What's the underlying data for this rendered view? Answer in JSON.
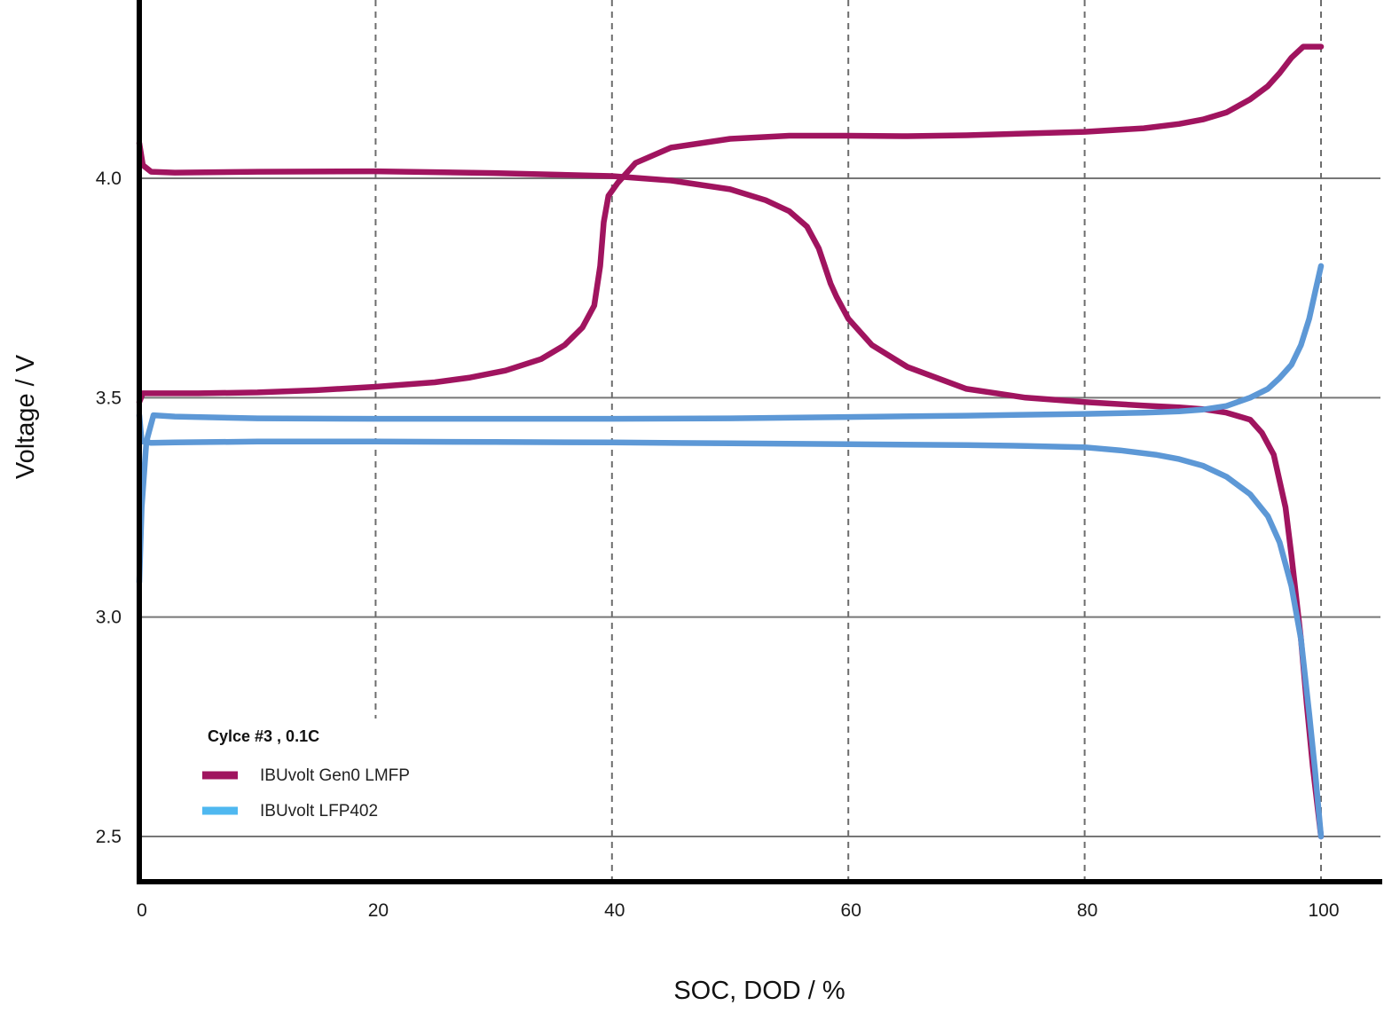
{
  "chart_data": {
    "type": "line",
    "xlabel": "SOC, DOD / %",
    "ylabel": "Voltage / V",
    "xlim": [
      0,
      105
    ],
    "ylim": [
      2.4,
      4.4
    ],
    "x_ticks": [
      "0",
      "20",
      "40",
      "60",
      "80",
      "100"
    ],
    "y_ticks": [
      "2.5",
      "3.0",
      "3.5",
      "4.0"
    ],
    "grid": "horizontal solid at y ticks, vertical dashed at x ticks",
    "legend": {
      "title": "Cylce #3 ,  0.1C",
      "placement": "bottom-left",
      "entries": [
        {
          "label": "IBUvolt Gen0 LMFP",
          "color": "#a0145f"
        },
        {
          "label": "IBUvolt LFP402",
          "color": "#4fb8f0"
        }
      ]
    },
    "series": [
      {
        "name": "IBUvolt Gen0 LMFP",
        "curve": "charge",
        "color": "#a0145f",
        "x": [
          0,
          0.3,
          1,
          5,
          10,
          15,
          20,
          25,
          28,
          31,
          34,
          36,
          37.5,
          38.5,
          39,
          39.3,
          39.7,
          40.5,
          42,
          45,
          50,
          55,
          60,
          65,
          70,
          75,
          80,
          85,
          88,
          90,
          92,
          94,
          95.5,
          96.5,
          97.5,
          98.5,
          100
        ],
        "y": [
          3.49,
          3.51,
          3.51,
          3.51,
          3.512,
          3.517,
          3.525,
          3.535,
          3.546,
          3.562,
          3.588,
          3.62,
          3.66,
          3.71,
          3.8,
          3.9,
          3.96,
          3.99,
          4.035,
          4.07,
          4.09,
          4.097,
          4.097,
          4.096,
          4.098,
          4.102,
          4.106,
          4.114,
          4.124,
          4.134,
          4.15,
          4.18,
          4.21,
          4.24,
          4.275,
          4.3,
          4.3
        ]
      },
      {
        "name": "IBUvolt Gen0 LMFP",
        "curve": "discharge",
        "color": "#a0145f",
        "x": [
          0,
          0.3,
          1,
          3,
          10,
          20,
          30,
          40,
          45,
          50,
          53,
          55,
          56.5,
          57.5,
          58,
          58.5,
          59,
          60,
          62,
          65,
          70,
          75,
          80,
          85,
          88,
          90,
          92,
          94,
          95,
          96,
          97,
          97.5,
          98.3,
          98.8,
          99.3,
          100
        ],
        "y": [
          4.08,
          4.03,
          4.015,
          4.013,
          4.015,
          4.016,
          4.012,
          4.005,
          3.995,
          3.975,
          3.95,
          3.925,
          3.89,
          3.84,
          3.8,
          3.76,
          3.73,
          3.68,
          3.62,
          3.57,
          3.52,
          3.5,
          3.49,
          3.482,
          3.478,
          3.474,
          3.466,
          3.45,
          3.42,
          3.37,
          3.25,
          3.14,
          2.95,
          2.8,
          2.66,
          2.5
        ]
      },
      {
        "name": "IBUvolt LFP402",
        "curve": "charge",
        "color": "#5d98d6",
        "x": [
          0,
          0.2,
          0.6,
          1.2,
          3,
          10,
          20,
          30,
          40,
          50,
          60,
          70,
          80,
          85,
          88,
          90,
          92,
          94,
          95.5,
          96.5,
          97.5,
          98.3,
          99,
          99.5,
          100
        ],
        "y": [
          3.08,
          3.25,
          3.4,
          3.46,
          3.457,
          3.453,
          3.452,
          3.452,
          3.452,
          3.453,
          3.456,
          3.459,
          3.463,
          3.466,
          3.469,
          3.473,
          3.481,
          3.5,
          3.52,
          3.545,
          3.575,
          3.62,
          3.68,
          3.74,
          3.8
        ]
      },
      {
        "name": "IBUvolt LFP402",
        "curve": "discharge",
        "color": "#5d98d6",
        "x": [
          0,
          0.2,
          0.5,
          1,
          3,
          10,
          20,
          30,
          40,
          50,
          60,
          70,
          75,
          80,
          83,
          86,
          88,
          90,
          92,
          94,
          95.5,
          96.5,
          97.5,
          98.3,
          99,
          99.5,
          100
        ],
        "y": [
          3.46,
          3.4,
          3.4,
          3.397,
          3.398,
          3.4,
          3.4,
          3.399,
          3.398,
          3.396,
          3.394,
          3.392,
          3.39,
          3.387,
          3.38,
          3.37,
          3.36,
          3.345,
          3.32,
          3.28,
          3.23,
          3.17,
          3.07,
          2.95,
          2.78,
          2.65,
          2.5
        ]
      }
    ]
  }
}
